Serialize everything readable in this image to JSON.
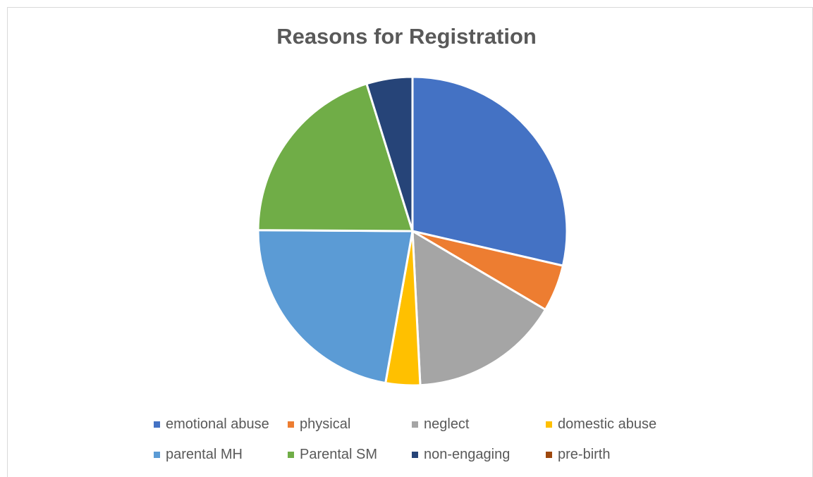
{
  "chart_data": {
    "type": "pie",
    "title": "Reasons for Registration",
    "legend_position": "bottom",
    "slices": [
      {
        "label": "emotional abuse",
        "value": 28.6,
        "color": "#4472C4"
      },
      {
        "label": "physical",
        "value": 4.9,
        "color": "#ED7D31"
      },
      {
        "label": "neglect",
        "value": 15.7,
        "color": "#A5A5A5"
      },
      {
        "label": "domestic abuse",
        "value": 3.6,
        "color": "#FFC000"
      },
      {
        "label": "parental MH",
        "value": 22.3,
        "color": "#5B9BD5"
      },
      {
        "label": "Parental SM",
        "value": 20.1,
        "color": "#70AD47"
      },
      {
        "label": "non-engaging",
        "value": 4.8,
        "color": "#264478"
      },
      {
        "label": "pre-birth",
        "value": 0.0,
        "color": "#9E480E"
      }
    ]
  }
}
